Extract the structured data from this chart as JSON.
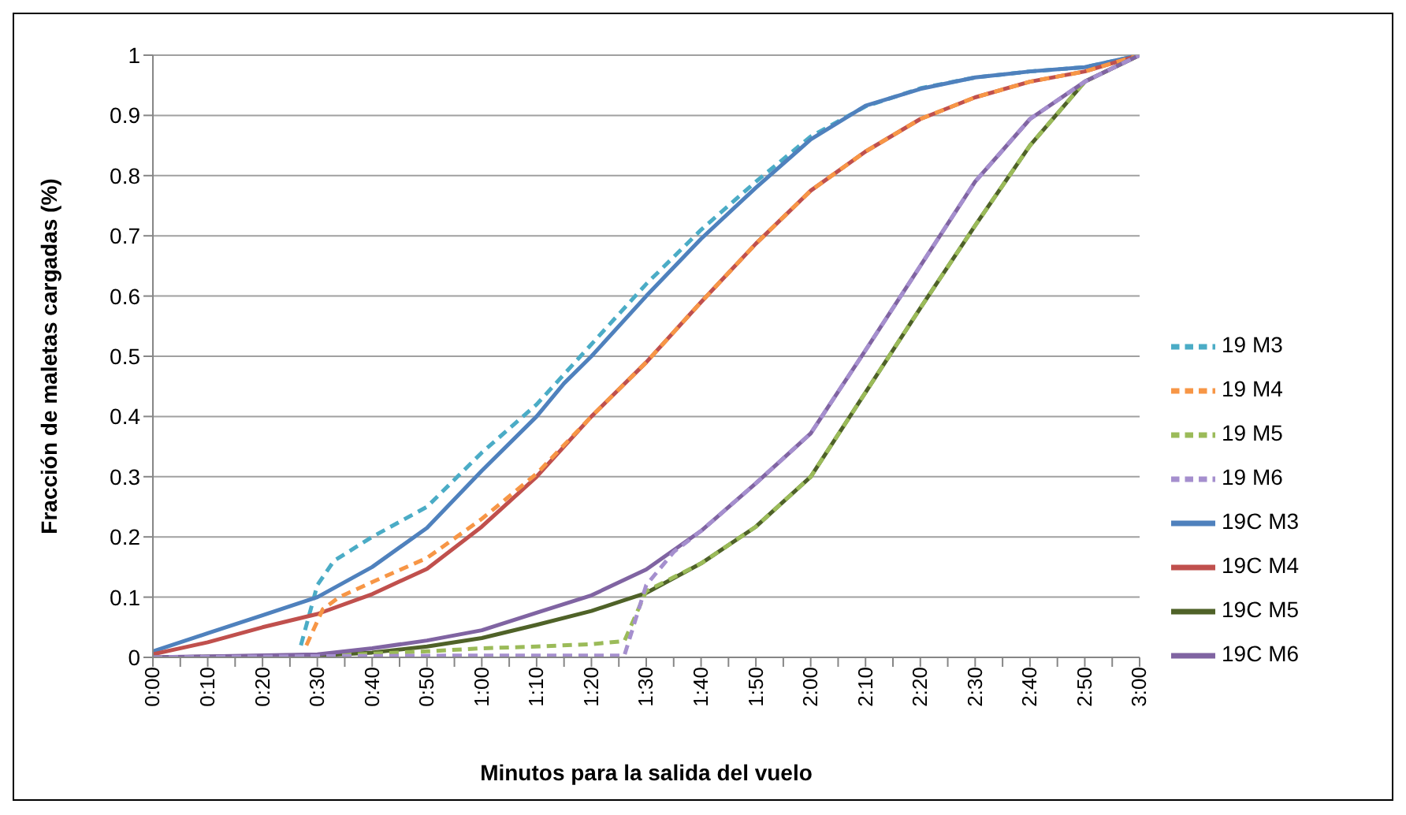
{
  "chart_data": {
    "type": "line",
    "xlabel": "Minutos para la salida del vuelo",
    "ylabel": "Fracción de maletas cargadas (%)",
    "xlim": [
      0,
      180
    ],
    "ylim": [
      0,
      1
    ],
    "xticks": [
      {
        "value": 0,
        "label": "0:00"
      },
      {
        "value": 5,
        "label": null
      },
      {
        "value": 10,
        "label": "0:10"
      },
      {
        "value": 15,
        "label": null
      },
      {
        "value": 20,
        "label": "0:20"
      },
      {
        "value": 25,
        "label": null
      },
      {
        "value": 30,
        "label": "0:30"
      },
      {
        "value": 35,
        "label": null
      },
      {
        "value": 40,
        "label": "0:40"
      },
      {
        "value": 45,
        "label": null
      },
      {
        "value": 50,
        "label": "0:50"
      },
      {
        "value": 55,
        "label": null
      },
      {
        "value": 60,
        "label": "1:00"
      },
      {
        "value": 65,
        "label": null
      },
      {
        "value": 70,
        "label": "1:10"
      },
      {
        "value": 75,
        "label": null
      },
      {
        "value": 80,
        "label": "1:20"
      },
      {
        "value": 85,
        "label": null
      },
      {
        "value": 90,
        "label": "1:30"
      },
      {
        "value": 95,
        "label": null
      },
      {
        "value": 100,
        "label": "1:40"
      },
      {
        "value": 105,
        "label": null
      },
      {
        "value": 110,
        "label": "1:50"
      },
      {
        "value": 115,
        "label": null
      },
      {
        "value": 120,
        "label": "2:00"
      },
      {
        "value": 125,
        "label": null
      },
      {
        "value": 130,
        "label": "2:10"
      },
      {
        "value": 135,
        "label": null
      },
      {
        "value": 140,
        "label": "2:20"
      },
      {
        "value": 145,
        "label": null
      },
      {
        "value": 150,
        "label": "2:30"
      },
      {
        "value": 155,
        "label": null
      },
      {
        "value": 160,
        "label": "2:40"
      },
      {
        "value": 165,
        "label": null
      },
      {
        "value": 170,
        "label": "2:50"
      },
      {
        "value": 175,
        "label": null
      },
      {
        "value": 180,
        "label": "3:00"
      }
    ],
    "yticks": [
      0,
      0.1,
      0.2,
      0.3,
      0.4,
      0.5,
      0.6,
      0.7,
      0.8,
      0.9,
      1
    ],
    "grid": "y",
    "legend": "right",
    "marker": "none",
    "series": [
      {
        "name": "19 M3",
        "color": "#4bacc6",
        "line_style": "dashed",
        "x": [
          27,
          30,
          33,
          40,
          50,
          60,
          70,
          80,
          90,
          100,
          110,
          120,
          130,
          140,
          150,
          160,
          170,
          180
        ],
        "values": [
          0.02,
          0.12,
          0.16,
          0.2,
          0.25,
          0.34,
          0.42,
          0.52,
          0.62,
          0.71,
          0.79,
          0.865,
          0.915,
          0.945,
          0.963,
          0.973,
          0.98,
          1
        ]
      },
      {
        "name": "19C M3",
        "color": "#4f81bd",
        "line_style": "solid",
        "x": [
          0,
          10,
          20,
          30,
          40,
          50,
          60,
          70,
          75,
          80,
          90,
          100,
          110,
          120,
          130,
          140,
          150,
          160,
          170,
          180
        ],
        "values": [
          0.01,
          0.04,
          0.07,
          0.1,
          0.15,
          0.215,
          0.31,
          0.4,
          0.455,
          0.5,
          0.6,
          0.695,
          0.78,
          0.86,
          0.916,
          0.944,
          0.963,
          0.973,
          0.98,
          1
        ]
      },
      {
        "name": "19C M4",
        "color": "#c0504d",
        "line_style": "solid",
        "x": [
          0,
          10,
          20,
          30,
          40,
          50,
          60,
          70,
          80,
          90,
          100,
          110,
          120,
          130,
          140,
          150,
          160,
          170,
          180
        ],
        "values": [
          0.005,
          0.025,
          0.05,
          0.072,
          0.105,
          0.147,
          0.217,
          0.3,
          0.4,
          0.49,
          0.59,
          0.687,
          0.775,
          0.84,
          0.894,
          0.93,
          0.956,
          0.973,
          1
        ]
      },
      {
        "name": "19 M4",
        "color": "#f79646",
        "line_style": "dashed",
        "x": [
          28,
          31,
          34,
          40,
          50,
          60,
          70,
          80,
          90,
          100,
          110,
          120,
          130,
          140,
          150,
          160,
          170,
          180
        ],
        "values": [
          0.02,
          0.08,
          0.1,
          0.125,
          0.165,
          0.23,
          0.305,
          0.4,
          0.49,
          0.59,
          0.687,
          0.775,
          0.84,
          0.894,
          0.93,
          0.956,
          0.973,
          1
        ]
      },
      {
        "name": "19C M5",
        "color": "#4f6228",
        "line_style": "solid",
        "x": [
          0,
          30,
          40,
          50,
          60,
          70,
          80,
          90,
          100,
          110,
          120,
          130,
          140,
          150,
          160,
          170,
          180
        ],
        "values": [
          0,
          0.003,
          0.008,
          0.018,
          0.032,
          0.054,
          0.077,
          0.107,
          0.156,
          0.217,
          0.3,
          0.44,
          0.58,
          0.717,
          0.85,
          0.956,
          1
        ]
      },
      {
        "name": "19 M5",
        "color": "#9bbb59",
        "line_style": "dashed",
        "x": [
          0,
          30,
          40,
          50,
          60,
          70,
          80,
          86,
          90,
          100,
          110,
          120,
          130,
          140,
          150,
          160,
          170,
          180
        ],
        "values": [
          0,
          0.002,
          0.006,
          0.01,
          0.015,
          0.018,
          0.022,
          0.027,
          0.11,
          0.156,
          0.217,
          0.3,
          0.44,
          0.58,
          0.717,
          0.85,
          0.956,
          1
        ]
      },
      {
        "name": "19C M6",
        "color": "#8064a2",
        "line_style": "solid",
        "x": [
          0,
          30,
          40,
          50,
          60,
          70,
          80,
          90,
          100,
          110,
          120,
          130,
          140,
          150,
          160,
          170,
          180
        ],
        "values": [
          0,
          0.005,
          0.015,
          0.028,
          0.045,
          0.074,
          0.103,
          0.146,
          0.21,
          0.289,
          0.372,
          0.51,
          0.65,
          0.79,
          0.894,
          0.956,
          1
        ]
      },
      {
        "name": "19 M6",
        "color": "#a58fce",
        "line_style": "dashed",
        "x": [
          0,
          30,
          60,
          80,
          86,
          90,
          95,
          100,
          110,
          120,
          130,
          140,
          150,
          160,
          170,
          180
        ],
        "values": [
          0,
          0.002,
          0.003,
          0.003,
          0.003,
          0.12,
          0.175,
          0.21,
          0.289,
          0.372,
          0.51,
          0.65,
          0.79,
          0.894,
          0.956,
          1
        ]
      }
    ]
  }
}
